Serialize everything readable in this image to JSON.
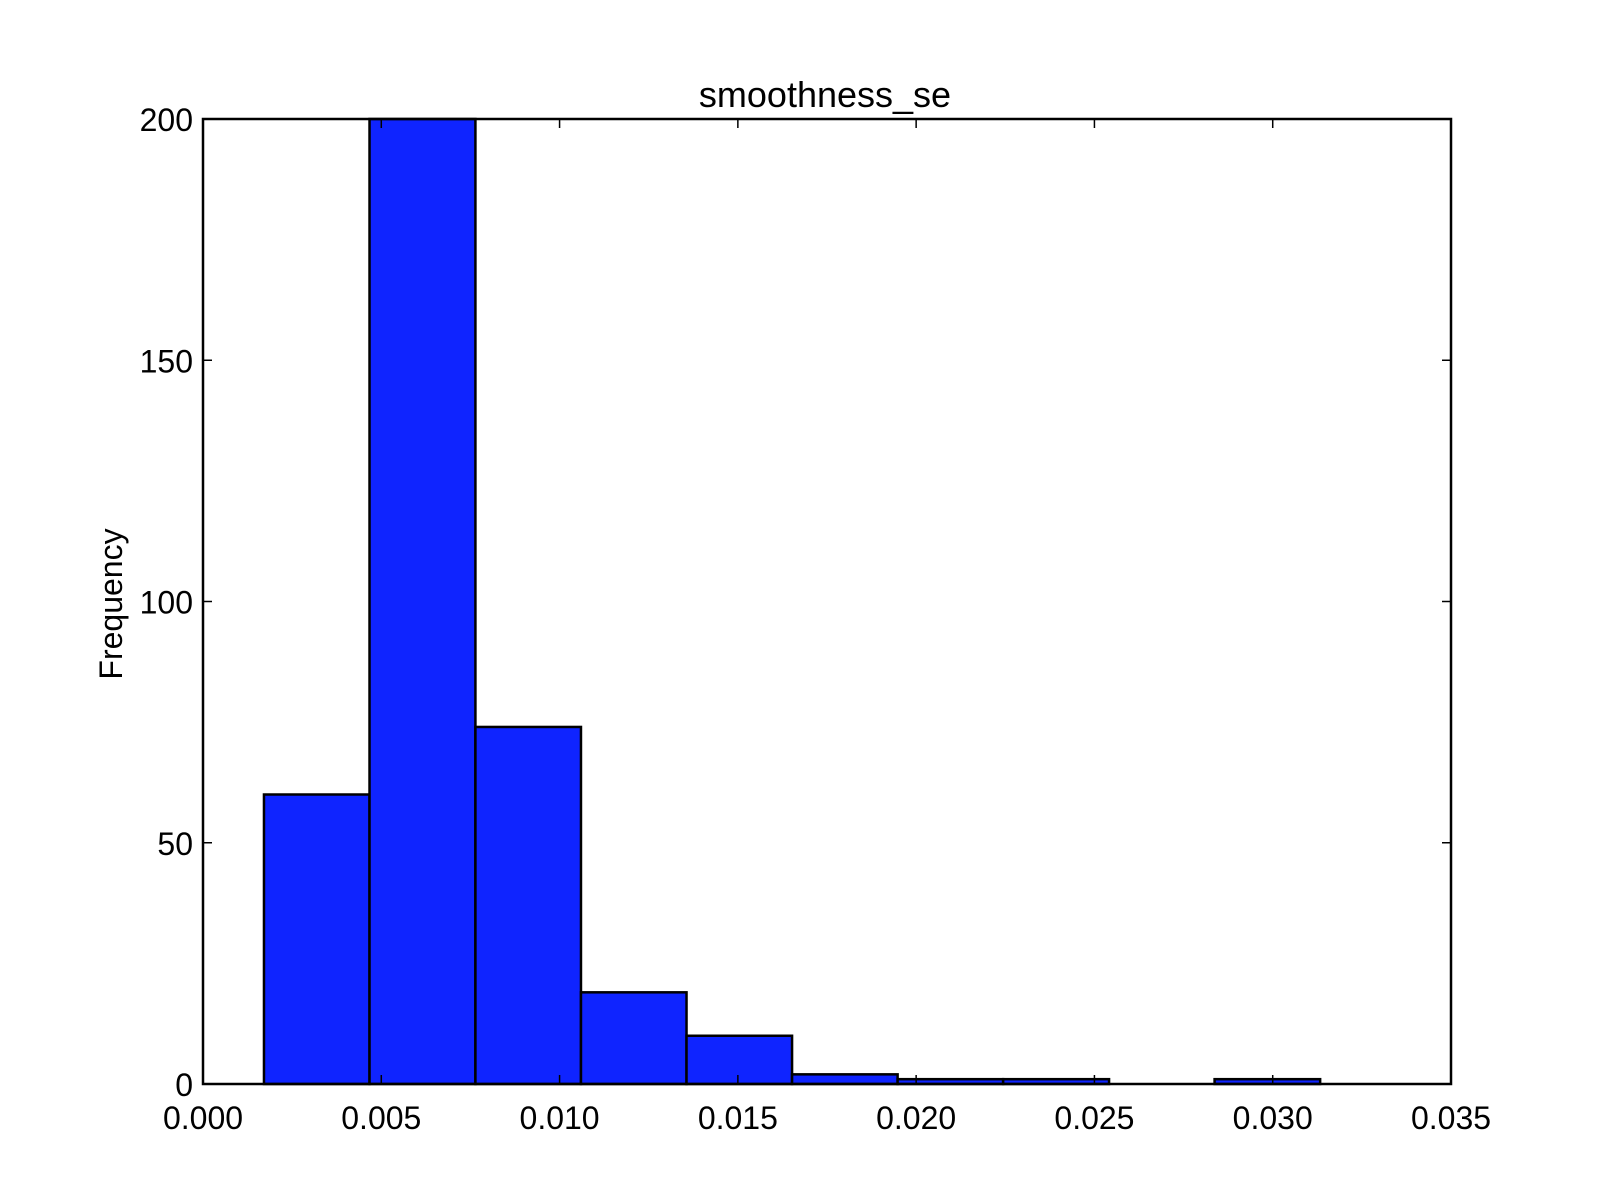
{
  "chart_data": {
    "type": "bar",
    "title": "smoothness_se",
    "xlabel": "",
    "ylabel": "Frequency",
    "xlim": [
      0.0,
      0.035
    ],
    "ylim": [
      0,
      200
    ],
    "x_ticks": [
      "0.000",
      "0.005",
      "0.010",
      "0.015",
      "0.020",
      "0.025",
      "0.030",
      "0.035"
    ],
    "y_ticks": [
      "0",
      "50",
      "100",
      "150",
      "200"
    ],
    "bins": [
      {
        "x0": 0.00171,
        "x1": 0.00467,
        "count": 60
      },
      {
        "x0": 0.00467,
        "x1": 0.00764,
        "count": 200
      },
      {
        "x0": 0.00764,
        "x1": 0.0106,
        "count": 74
      },
      {
        "x0": 0.0106,
        "x1": 0.01356,
        "count": 19
      },
      {
        "x0": 0.01356,
        "x1": 0.01652,
        "count": 10
      },
      {
        "x0": 0.01652,
        "x1": 0.01948,
        "count": 2
      },
      {
        "x0": 0.01948,
        "x1": 0.02244,
        "count": 1
      },
      {
        "x0": 0.02244,
        "x1": 0.02541,
        "count": 1
      },
      {
        "x0": 0.02541,
        "x1": 0.02837,
        "count": 0
      },
      {
        "x0": 0.02837,
        "x1": 0.03133,
        "count": 1
      }
    ],
    "bar_color": "#0f24ff",
    "edge_color": "#000000",
    "grid": false,
    "legend": "none"
  }
}
